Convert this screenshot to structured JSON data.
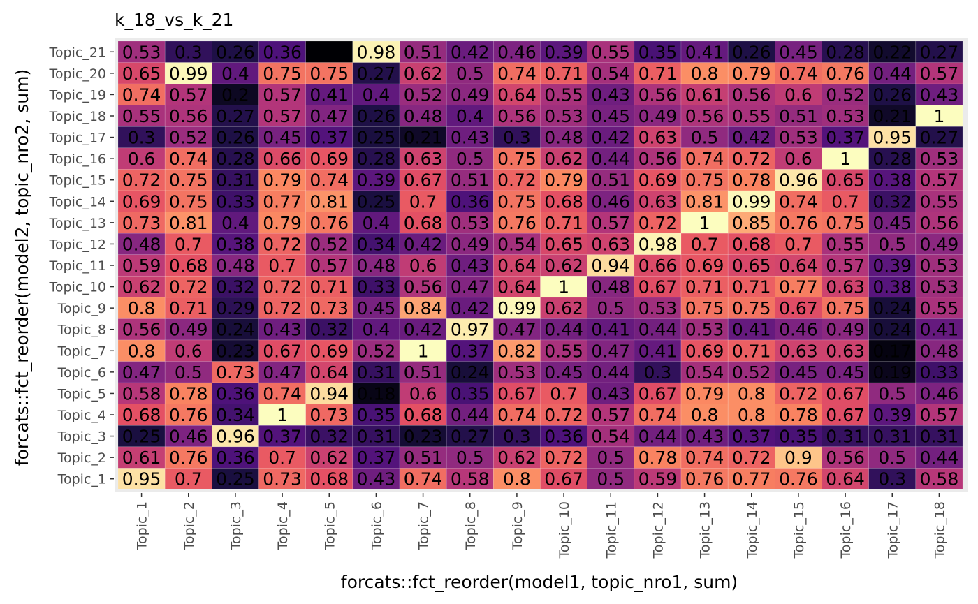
{
  "chart_data": {
    "type": "heatmap",
    "title": "k_18_vs_k_21",
    "xlabel": "forcats::fct_reorder(model1, topic_nro1, sum)",
    "ylabel": "forcats::fct_reorder(model2, topic_nro2, sum)",
    "x_categories": [
      "Topic_1",
      "Topic_2",
      "Topic_3",
      "Topic_4",
      "Topic_5",
      "Topic_6",
      "Topic_7",
      "Topic_8",
      "Topic_9",
      "Topic_10",
      "Topic_11",
      "Topic_12",
      "Topic_13",
      "Topic_14",
      "Topic_15",
      "Topic_16",
      "Topic_17",
      "Topic_18"
    ],
    "y_categories": [
      "Topic_21",
      "Topic_20",
      "Topic_19",
      "Topic_18",
      "Topic_17",
      "Topic_16",
      "Topic_15",
      "Topic_14",
      "Topic_13",
      "Topic_12",
      "Topic_11",
      "Topic_10",
      "Topic_9",
      "Topic_8",
      "Topic_7",
      "Topic_6",
      "Topic_5",
      "Topic_4",
      "Topic_3",
      "Topic_2",
      "Topic_1"
    ],
    "values": [
      [
        0.53,
        0.3,
        0.26,
        0.36,
        null,
        0.98,
        0.51,
        0.42,
        0.46,
        0.39,
        0.55,
        0.35,
        0.41,
        0.26,
        0.45,
        0.28,
        0.22,
        0.27
      ],
      [
        0.65,
        0.99,
        0.4,
        0.75,
        0.75,
        0.27,
        0.62,
        0.5,
        0.74,
        0.71,
        0.54,
        0.71,
        0.8,
        0.79,
        0.74,
        0.76,
        0.44,
        0.57
      ],
      [
        0.74,
        0.57,
        0.2,
        0.57,
        0.41,
        0.4,
        0.52,
        0.49,
        0.64,
        0.55,
        0.43,
        0.56,
        0.61,
        0.56,
        0.6,
        0.52,
        0.26,
        0.43
      ],
      [
        0.55,
        0.56,
        0.27,
        0.57,
        0.47,
        0.26,
        0.48,
        0.4,
        0.56,
        0.53,
        0.45,
        0.49,
        0.56,
        0.55,
        0.51,
        0.53,
        0.21,
        1
      ],
      [
        0.3,
        0.52,
        0.26,
        0.45,
        0.37,
        0.25,
        0.21,
        0.43,
        0.3,
        0.48,
        0.42,
        0.63,
        0.5,
        0.42,
        0.53,
        0.37,
        0.95,
        0.27
      ],
      [
        0.6,
        0.74,
        0.28,
        0.66,
        0.69,
        0.28,
        0.63,
        0.5,
        0.75,
        0.62,
        0.44,
        0.56,
        0.74,
        0.72,
        0.6,
        1,
        0.28,
        0.53
      ],
      [
        0.72,
        0.75,
        0.31,
        0.79,
        0.74,
        0.39,
        0.67,
        0.51,
        0.72,
        0.79,
        0.51,
        0.69,
        0.75,
        0.78,
        0.96,
        0.65,
        0.38,
        0.57
      ],
      [
        0.69,
        0.75,
        0.33,
        0.77,
        0.81,
        0.25,
        0.7,
        0.36,
        0.75,
        0.68,
        0.46,
        0.63,
        0.81,
        0.99,
        0.74,
        0.7,
        0.32,
        0.55
      ],
      [
        0.73,
        0.81,
        0.4,
        0.79,
        0.76,
        0.4,
        0.68,
        0.53,
        0.76,
        0.71,
        0.57,
        0.72,
        1,
        0.85,
        0.76,
        0.75,
        0.45,
        0.56
      ],
      [
        0.48,
        0.7,
        0.38,
        0.72,
        0.52,
        0.34,
        0.42,
        0.49,
        0.54,
        0.65,
        0.63,
        0.98,
        0.7,
        0.68,
        0.7,
        0.55,
        0.5,
        0.49
      ],
      [
        0.59,
        0.68,
        0.48,
        0.7,
        0.57,
        0.48,
        0.6,
        0.43,
        0.64,
        0.62,
        0.94,
        0.66,
        0.69,
        0.65,
        0.64,
        0.57,
        0.39,
        0.53
      ],
      [
        0.62,
        0.72,
        0.32,
        0.72,
        0.71,
        0.33,
        0.56,
        0.47,
        0.64,
        1,
        0.48,
        0.67,
        0.71,
        0.71,
        0.77,
        0.63,
        0.38,
        0.53
      ],
      [
        0.8,
        0.71,
        0.29,
        0.72,
        0.73,
        0.45,
        0.84,
        0.42,
        0.99,
        0.62,
        0.5,
        0.53,
        0.75,
        0.75,
        0.67,
        0.75,
        0.24,
        0.55
      ],
      [
        0.56,
        0.49,
        0.24,
        0.43,
        0.32,
        0.4,
        0.42,
        0.97,
        0.47,
        0.44,
        0.41,
        0.44,
        0.53,
        0.41,
        0.46,
        0.49,
        0.24,
        0.41
      ],
      [
        0.8,
        0.6,
        0.23,
        0.67,
        0.69,
        0.52,
        1,
        0.37,
        0.82,
        0.55,
        0.47,
        0.41,
        0.69,
        0.71,
        0.63,
        0.63,
        0.17,
        0.48
      ],
      [
        0.47,
        0.5,
        0.73,
        0.47,
        0.64,
        0.31,
        0.51,
        0.24,
        0.53,
        0.45,
        0.44,
        0.3,
        0.54,
        0.52,
        0.45,
        0.45,
        0.19,
        0.33
      ],
      [
        0.58,
        0.78,
        0.36,
        0.74,
        0.94,
        0.18,
        0.6,
        0.35,
        0.67,
        0.7,
        0.43,
        0.67,
        0.79,
        0.8,
        0.72,
        0.67,
        0.5,
        0.46
      ],
      [
        0.68,
        0.76,
        0.34,
        1,
        0.73,
        0.35,
        0.68,
        0.44,
        0.74,
        0.72,
        0.57,
        0.74,
        0.8,
        0.8,
        0.78,
        0.67,
        0.39,
        0.57
      ],
      [
        0.25,
        0.46,
        0.96,
        0.37,
        0.32,
        0.31,
        0.23,
        0.27,
        0.3,
        0.36,
        0.54,
        0.44,
        0.43,
        0.37,
        0.35,
        0.31,
        0.31,
        0.31
      ],
      [
        0.61,
        0.76,
        0.36,
        0.7,
        0.62,
        0.37,
        0.51,
        0.5,
        0.62,
        0.72,
        0.5,
        0.78,
        0.74,
        0.72,
        0.9,
        0.56,
        0.5,
        0.44
      ],
      [
        0.95,
        0.7,
        0.25,
        0.73,
        0.68,
        0.43,
        0.74,
        0.58,
        0.8,
        0.67,
        0.5,
        0.59,
        0.76,
        0.77,
        0.76,
        0.64,
        0.3,
        0.58
      ]
    ],
    "color_scale": "magma",
    "panel_background": "#ebebeb",
    "legend": "none"
  }
}
